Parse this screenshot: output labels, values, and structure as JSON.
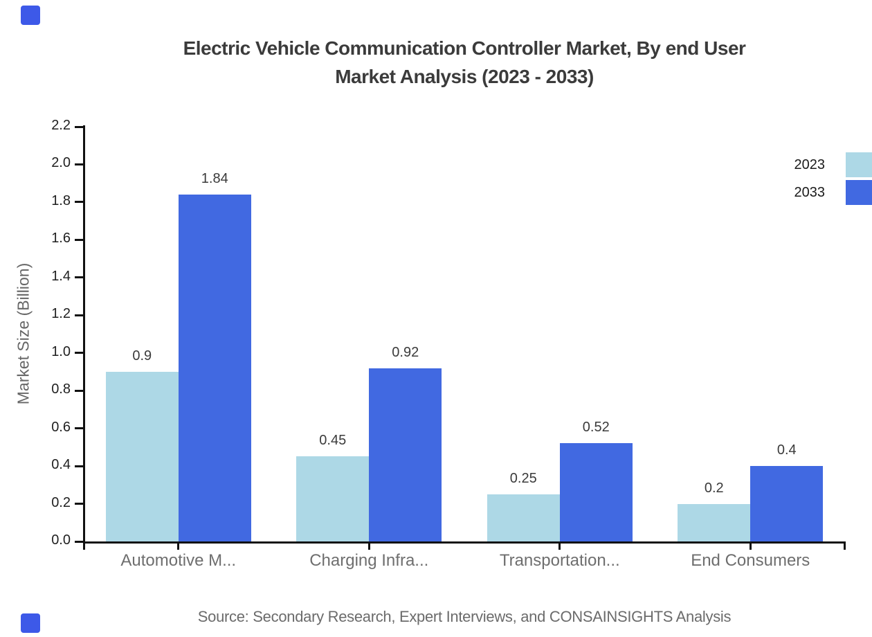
{
  "page": {
    "background": "#ffffff"
  },
  "title": {
    "line1": "Electric Vehicle Communication Controller Market, By end User",
    "line2": "Market Analysis (2023 - 2033)"
  },
  "source_note": "Source: Secondary Research, Expert Interviews, and CONSAINSIGHTS Analysis",
  "legend": {
    "position": "right-top",
    "items": [
      {
        "label": "2023",
        "color": "#add8e6"
      },
      {
        "label": "2033",
        "color": "#4169e1"
      }
    ]
  },
  "colors": {
    "series_2023": "#add8e6",
    "series_2033": "#4169e1",
    "axis": "#111111",
    "tick_label": "#1f1f1f",
    "category_label": "#6e6e6e",
    "value_label": "#3a3a3a",
    "title": "#3b3b3b",
    "source": "#6b6b6b",
    "corner_accent": "#3d59e8"
  },
  "chart_data": {
    "type": "bar",
    "title": "Electric Vehicle Communication Controller Market, By end User Market Analysis (2023 - 2033)",
    "xlabel": "",
    "ylabel": "Market Size (Billion)",
    "categories": [
      "Automotive M...",
      "Charging Infra...",
      "Transportation...",
      "End Consumers"
    ],
    "series": [
      {
        "name": "2023",
        "color": "#add8e6",
        "values": [
          0.9,
          0.45,
          0.25,
          0.2
        ]
      },
      {
        "name": "2033",
        "color": "#4169e1",
        "values": [
          1.84,
          0.92,
          0.52,
          0.4
        ]
      }
    ],
    "value_labels": [
      [
        "0.9",
        "0.45",
        "0.25",
        "0.2"
      ],
      [
        "1.84",
        "0.92",
        "0.52",
        "0.4"
      ]
    ],
    "ylim": [
      0,
      2.2
    ],
    "ytick_step": 0.2,
    "ytick_labels": [
      "0.0",
      "0.2",
      "0.4",
      "0.6",
      "0.8",
      "1.0",
      "1.2",
      "1.4",
      "1.6",
      "1.8",
      "2.0",
      "2.2"
    ],
    "grid": false,
    "legend_position": "right-top"
  }
}
